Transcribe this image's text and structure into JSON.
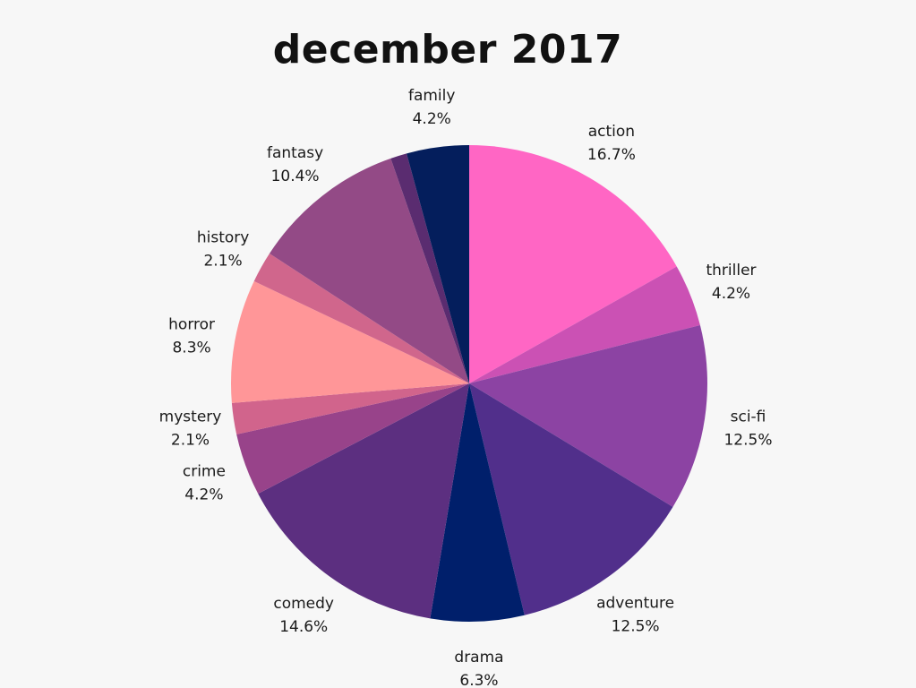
{
  "chart_data": {
    "type": "pie",
    "title": "december 2017",
    "slices": [
      {
        "label": "action",
        "value": 16.7,
        "value_label": "16.7%",
        "color": "#ff66c4"
      },
      {
        "label": "thriller",
        "value": 4.2,
        "value_label": "4.2%",
        "color": "#cb51b4"
      },
      {
        "label": "sci-fi",
        "value": 12.5,
        "value_label": "12.5%",
        "color": "#8c43a3"
      },
      {
        "label": "adventure",
        "value": 12.5,
        "value_label": "12.5%",
        "color": "#512f8b"
      },
      {
        "label": "drama",
        "value": 6.3,
        "value_label": "6.3%",
        "color": "#001f6b"
      },
      {
        "label": "comedy",
        "value": 14.6,
        "value_label": "14.6%",
        "color": "#5c2f80"
      },
      {
        "label": "crime",
        "value": 4.2,
        "value_label": "4.2%",
        "color": "#98438a"
      },
      {
        "label": "mystery",
        "value": 2.1,
        "value_label": "2.1%",
        "color": "#d1648c"
      },
      {
        "label": "horror",
        "value": 8.3,
        "value_label": "8.3%",
        "color": "#ff9698"
      },
      {
        "label": "history",
        "value": 2.1,
        "value_label": "2.1%",
        "color": "#d0668c"
      },
      {
        "label": "fantasy",
        "value": 10.4,
        "value_label": "10.4%",
        "color": "#934a86"
      },
      {
        "label": "",
        "value": 1.1,
        "value_label": "",
        "color": "#5a2c70"
      },
      {
        "label": "family",
        "value": 4.2,
        "value_label": "4.2%",
        "color": "#041e5c"
      }
    ],
    "start_angle": "top",
    "direction": "clockwise",
    "legend": "none",
    "labels": "outside"
  }
}
